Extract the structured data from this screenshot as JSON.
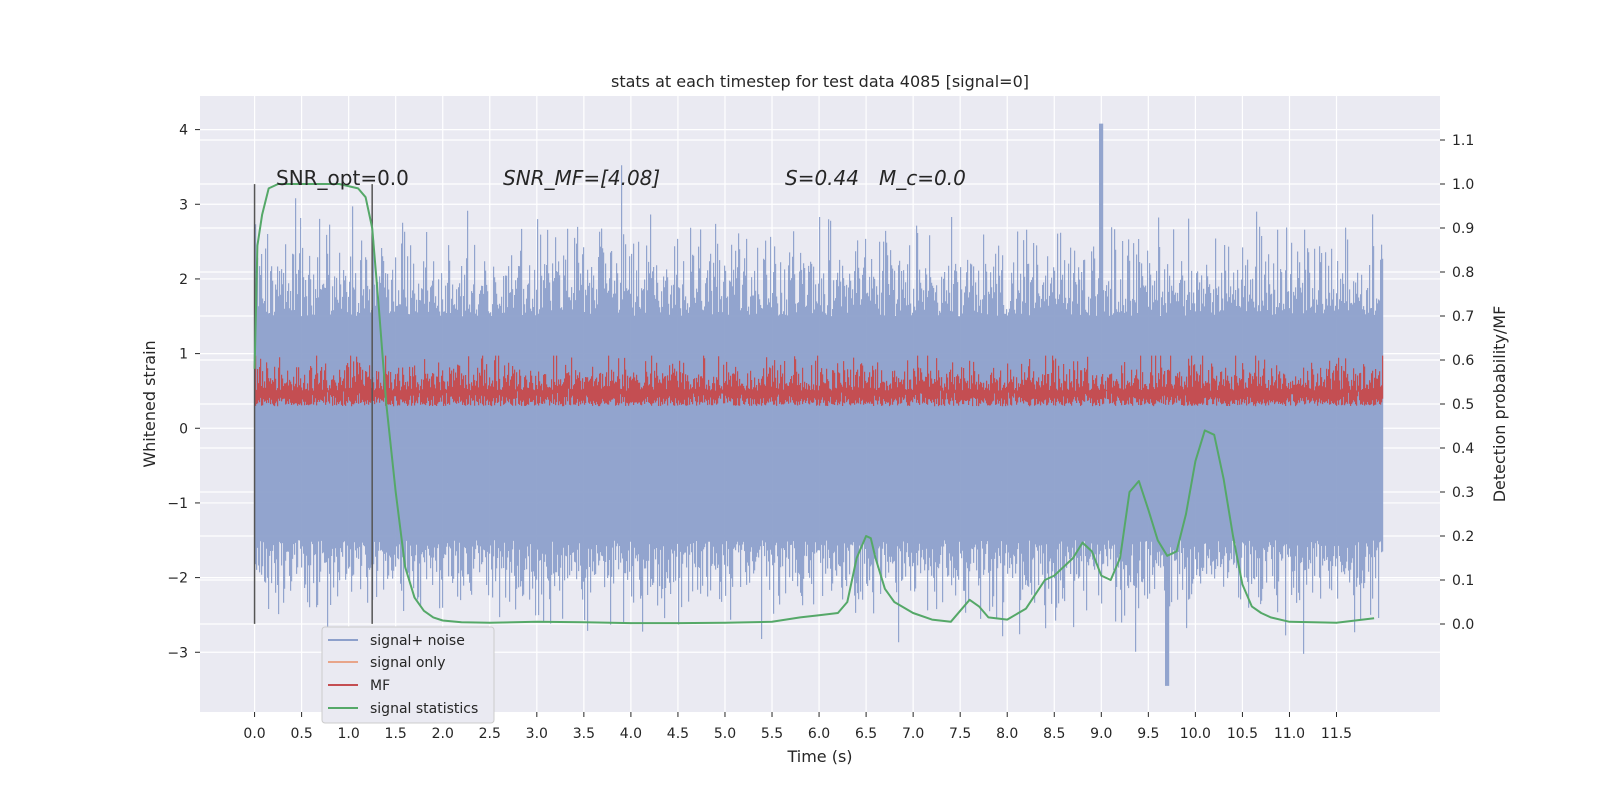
{
  "chart_data": {
    "type": "line",
    "title": "stats at each timestep for test data 4085 [signal=0]",
    "xlabel": "Time (s)",
    "ylabel_left": "Whitened strain",
    "ylabel_right": "Detection probability/MF",
    "xlim": [
      -0.58,
      12.6
    ],
    "ylim_left": [
      -3.8,
      4.45
    ],
    "ylim_right": [
      -0.2,
      1.2
    ],
    "x_ticks": [
      "0.0",
      "0.5",
      "1.0",
      "1.5",
      "2.0",
      "2.5",
      "3.0",
      "3.5",
      "4.0",
      "4.5",
      "5.0",
      "5.5",
      "6.0",
      "6.5",
      "7.0",
      "7.5",
      "8.0",
      "8.5",
      "9.0",
      "9.5",
      "10.0",
      "10.5",
      "11.0",
      "11.5"
    ],
    "y_left_ticks": [
      "−3",
      "−2",
      "−1",
      "0",
      "1",
      "2",
      "3",
      "4"
    ],
    "y_right_ticks": [
      "0.0",
      "0.1",
      "0.2",
      "0.3",
      "0.4",
      "0.5",
      "0.6",
      "0.7",
      "0.8",
      "0.9",
      "1.0",
      "1.1"
    ],
    "grid": true,
    "legend_position": "lower-left",
    "annotations": [
      "SNR_opt=0.0",
      "SNR_MF=[4.08]",
      "S=0.44",
      "M_c=0.0"
    ],
    "vlines": [
      0.0,
      1.25
    ],
    "vline_range_left": [
      -2.62,
      3.27
    ],
    "series": [
      {
        "name": "signal+ noise",
        "axis": "left",
        "color": "#8da0cb",
        "note": "dense whitened strain noise, duration 12 s",
        "envelope_high": 1.5,
        "envelope_low": -1.5,
        "peak_max": 4.08,
        "peak_max_time": 9.0,
        "peak_min": -3.45,
        "peak_min_time": 9.7
      },
      {
        "name": "signal only",
        "axis": "left",
        "color": "#e8a58a",
        "values": []
      },
      {
        "name": "MF",
        "axis": "right",
        "color": "#c44e52",
        "note": "matched filter output band",
        "band_low": 0.5,
        "band_high": 0.6,
        "peak": 0.61
      },
      {
        "name": "signal statistics",
        "axis": "right",
        "color": "#55a868",
        "x": [
          0.0,
          0.03,
          0.08,
          0.15,
          0.25,
          0.4,
          0.6,
          0.9,
          1.1,
          1.18,
          1.25,
          1.32,
          1.4,
          1.5,
          1.6,
          1.7,
          1.8,
          1.9,
          2.0,
          2.2,
          2.5,
          3.0,
          3.5,
          4.0,
          4.5,
          5.0,
          5.5,
          5.8,
          6.0,
          6.2,
          6.3,
          6.4,
          6.5,
          6.55,
          6.6,
          6.7,
          6.8,
          7.0,
          7.2,
          7.4,
          7.5,
          7.6,
          7.7,
          7.8,
          8.0,
          8.2,
          8.4,
          8.5,
          8.7,
          8.8,
          8.9,
          9.0,
          9.1,
          9.2,
          9.3,
          9.4,
          9.5,
          9.6,
          9.7,
          9.8,
          9.9,
          10.0,
          10.1,
          10.2,
          10.3,
          10.4,
          10.5,
          10.6,
          10.7,
          10.8,
          11.0,
          11.5,
          11.9
        ],
        "y": [
          0.58,
          0.86,
          0.93,
          0.99,
          1.0,
          1.0,
          1.0,
          1.0,
          0.99,
          0.97,
          0.9,
          0.72,
          0.5,
          0.3,
          0.13,
          0.06,
          0.03,
          0.015,
          0.008,
          0.004,
          0.003,
          0.005,
          0.004,
          0.002,
          0.002,
          0.003,
          0.005,
          0.015,
          0.02,
          0.025,
          0.05,
          0.15,
          0.2,
          0.195,
          0.15,
          0.08,
          0.05,
          0.025,
          0.01,
          0.005,
          0.03,
          0.055,
          0.04,
          0.015,
          0.01,
          0.035,
          0.1,
          0.11,
          0.15,
          0.185,
          0.165,
          0.11,
          0.1,
          0.15,
          0.3,
          0.325,
          0.26,
          0.19,
          0.155,
          0.165,
          0.25,
          0.37,
          0.44,
          0.43,
          0.33,
          0.2,
          0.09,
          0.04,
          0.025,
          0.015,
          0.005,
          0.003,
          0.013
        ]
      }
    ]
  }
}
